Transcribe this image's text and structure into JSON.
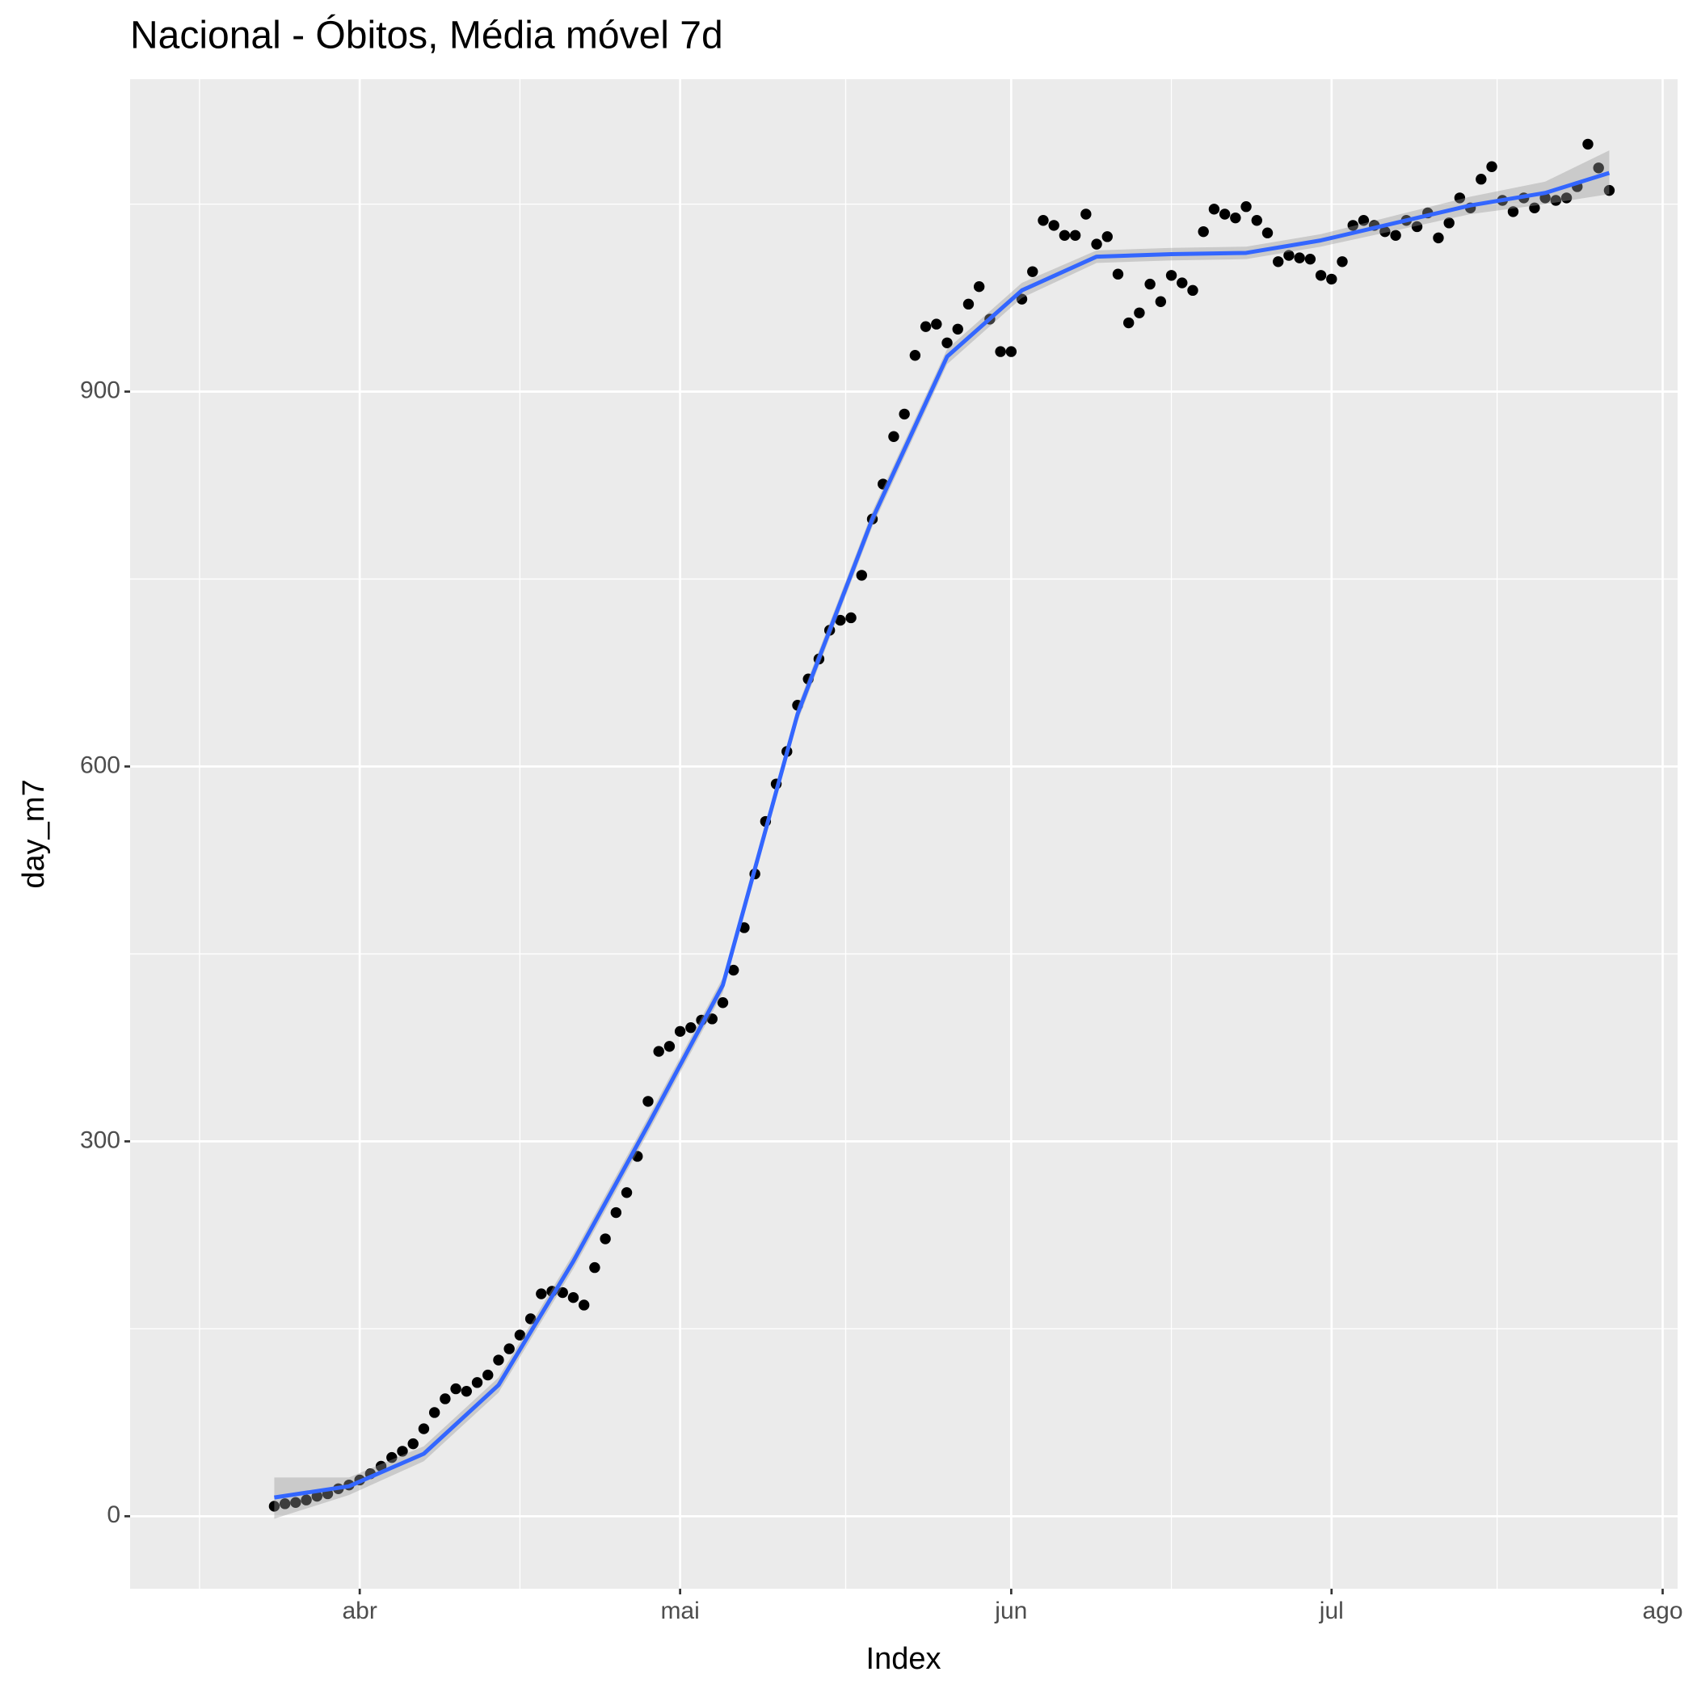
{
  "chart_data": {
    "type": "scatter",
    "title": "Nacional - Óbitos, Média móvel 7d",
    "x_label": "Index",
    "y_label": "day_m7",
    "xlim": [
      70.5,
      215.4
    ],
    "ylim": [
      -58,
      1150
    ],
    "xticks": [
      {
        "value": 92,
        "label": "abr"
      },
      {
        "value": 122,
        "label": "mai"
      },
      {
        "value": 153,
        "label": "jun"
      },
      {
        "value": 183,
        "label": "jul"
      },
      {
        "value": 214,
        "label": "ago"
      }
    ],
    "yticks": [
      0,
      300,
      600,
      900
    ],
    "grid": true,
    "point_color": "#000000",
    "line_color": "#3366FF",
    "ribbon_color": "#999999",
    "x": [
      84,
      85,
      86,
      87,
      88,
      89,
      90,
      91,
      92,
      93,
      94,
      95,
      96,
      97,
      98,
      99,
      100,
      101,
      102,
      103,
      104,
      105,
      106,
      107,
      108,
      109,
      110,
      111,
      112,
      113,
      114,
      115,
      116,
      117,
      118,
      119,
      120,
      121,
      122,
      123,
      124,
      125,
      126,
      127,
      128,
      129,
      130,
      131,
      132,
      133,
      134,
      135,
      136,
      137,
      138,
      139,
      140,
      141,
      142,
      143,
      144,
      145,
      146,
      147,
      148,
      149,
      150,
      151,
      152,
      153,
      154,
      155,
      156,
      157,
      158,
      159,
      160,
      161,
      162,
      163,
      164,
      165,
      166,
      167,
      168,
      169,
      170,
      171,
      172,
      173,
      174,
      175,
      176,
      177,
      178,
      179,
      180,
      181,
      182,
      183,
      184,
      185,
      186,
      187,
      188,
      189,
      190,
      191,
      192,
      193,
      194,
      195,
      196,
      197,
      198,
      199,
      200,
      201,
      202,
      203,
      204,
      205,
      206,
      207,
      208,
      209
    ],
    "values": [
      8,
      10,
      11,
      13,
      16,
      18,
      22,
      25,
      29,
      34,
      40,
      47,
      52,
      58,
      70,
      83,
      94,
      102,
      100,
      107,
      113,
      125,
      134,
      145,
      158,
      178,
      180,
      179,
      175,
      169,
      199,
      222,
      243,
      259,
      288,
      332,
      372,
      376,
      388,
      391,
      397,
      398,
      411,
      437,
      471,
      514,
      556,
      586,
      612,
      649,
      670,
      686,
      709,
      717,
      719,
      753,
      798,
      826,
      864,
      882,
      929,
      952,
      954,
      939,
      950,
      970,
      984,
      958,
      932,
      932,
      974,
      996,
      1037,
      1033,
      1025,
      1025,
      1042,
      1018,
      1024,
      994,
      955,
      963,
      986,
      972,
      993,
      987,
      981,
      1028,
      1046,
      1042,
      1039,
      1048,
      1037,
      1027,
      1004,
      1009,
      1007,
      1006,
      993,
      990,
      1004,
      1033,
      1037,
      1033,
      1028,
      1025,
      1037,
      1032,
      1043,
      1023,
      1035,
      1055,
      1047,
      1070,
      1080,
      1053,
      1044,
      1055,
      1047,
      1055,
      1053,
      1055,
      1064,
      1098,
      1079,
      1061
    ],
    "smooth": {
      "x": [
        84,
        91,
        98,
        105,
        112,
        119,
        126,
        133,
        140,
        147,
        154,
        161,
        168,
        175,
        182,
        189,
        196,
        203,
        209
      ],
      "values": [
        15,
        24,
        50,
        105,
        204,
        313,
        425,
        642,
        798,
        928,
        981,
        1008,
        1010,
        1011,
        1021,
        1035,
        1049,
        1059,
        1075
      ],
      "lower": [
        -2,
        17,
        44,
        99,
        198,
        307,
        419,
        636,
        792,
        922,
        975,
        1003,
        1005,
        1006,
        1016,
        1029,
        1042,
        1050,
        1058
      ],
      "upper": [
        31,
        31,
        56,
        111,
        210,
        319,
        431,
        648,
        804,
        934,
        987,
        1013,
        1015,
        1016,
        1026,
        1041,
        1056,
        1068,
        1093
      ]
    }
  }
}
